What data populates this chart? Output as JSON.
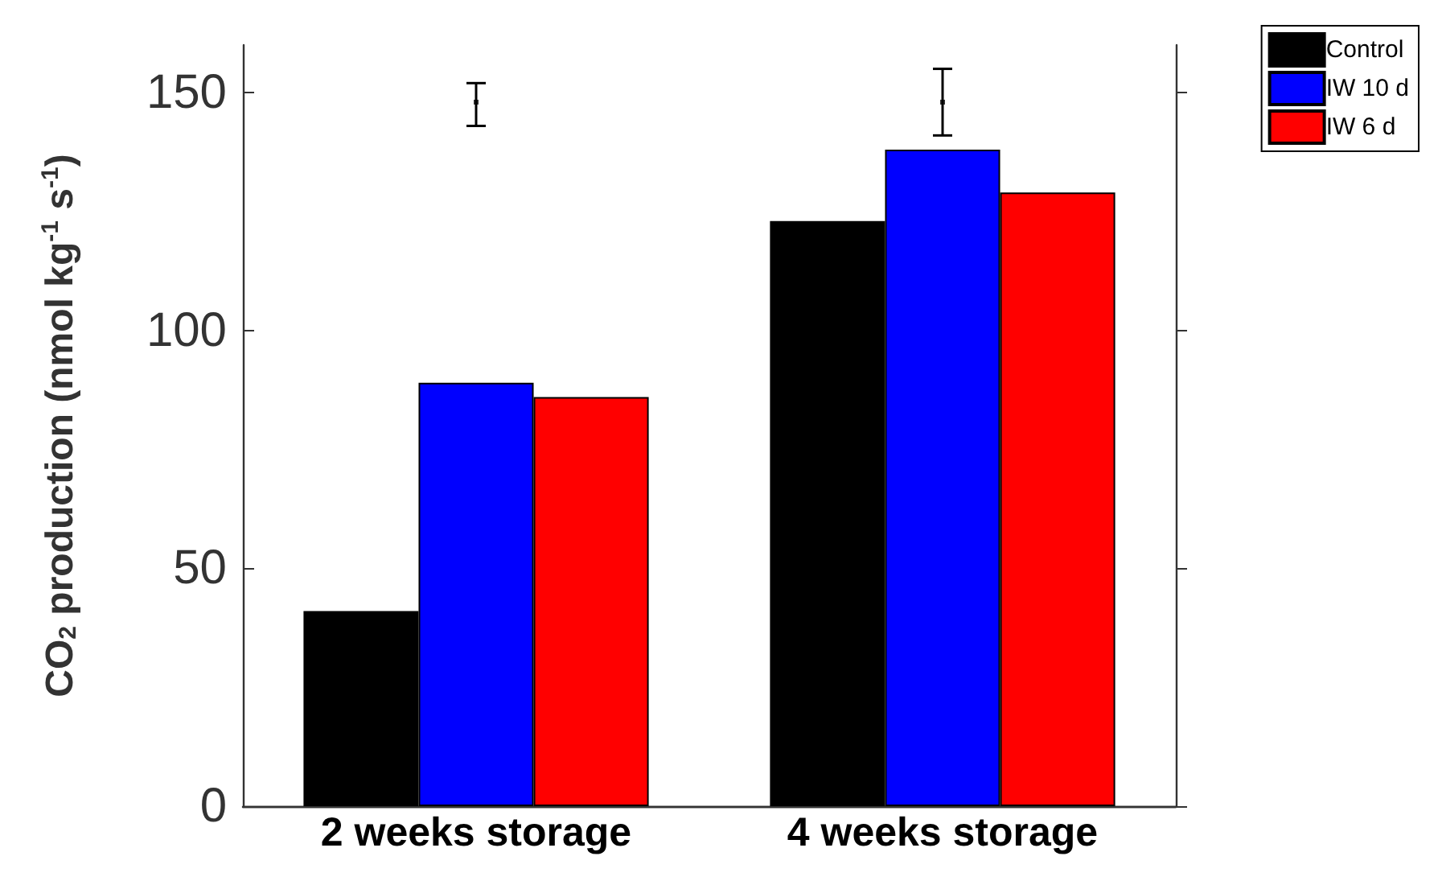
{
  "chart_data": {
    "type": "bar",
    "ylabel": "CO$_{2}$ production (nmol kg$^{-1}$ s$^{-1}$)",
    "categories": [
      "2 weeks storage",
      "4 weeks storage"
    ],
    "series": [
      {
        "name": "Control",
        "color": "#000000",
        "values": [
          41,
          123
        ]
      },
      {
        "name": "IW 10 d",
        "color": "#0000ff",
        "values": [
          89,
          138
        ]
      },
      {
        "name": "IW 6 d",
        "color": "#ff0000",
        "values": [
          86,
          129
        ]
      },
      {
        "type": "scatter",
        "color": "#000000",
        "values": [
          148,
          148
        ],
        "errors": [
          [
            143,
            152
          ],
          [
            141,
            155
          ]
        ]
      }
    ],
    "ylim": [
      0,
      160
    ],
    "yticks": [
      0,
      50,
      100,
      150
    ],
    "grid": false,
    "legend": "top right"
  }
}
